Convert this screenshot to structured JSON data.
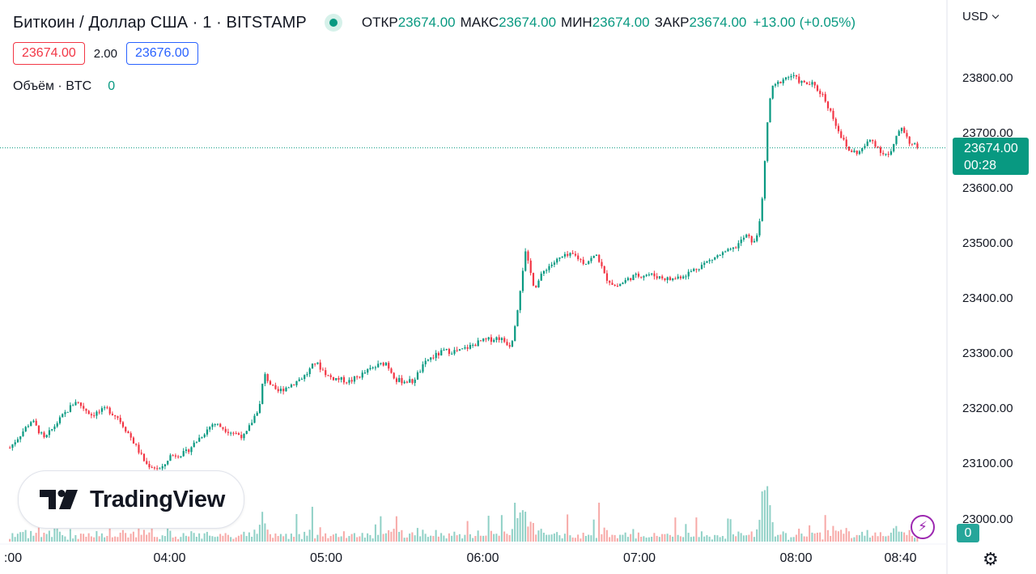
{
  "header": {
    "symbol": "Биткоин / Доллар США · 1 · BITSTAMP",
    "ohlc": [
      {
        "label": "ОТКР",
        "value": "23674.00"
      },
      {
        "label": "МАКС",
        "value": "23674.00"
      },
      {
        "label": "МИН",
        "value": "23674.00"
      },
      {
        "label": "ЗАКР",
        "value": "23674.00"
      }
    ],
    "change": "+13.00 (+0.05%)"
  },
  "quote": {
    "sell": "23674.00",
    "spread": "2.00",
    "buy": "23676.00"
  },
  "volume_legend": {
    "label": "Объём · BTC",
    "value": "0"
  },
  "currency": "USD",
  "price_tag": {
    "price": "23674.00",
    "countdown": "00:28"
  },
  "volume_tag": "0",
  "logo_text": "TradingView",
  "bolt_glyph": "⚡",
  "gear_glyph": "⚙",
  "colors": {
    "up": "#089981",
    "down": "#f23645",
    "vol_up": "#8fd0c6",
    "vol_down": "#f7a9a7"
  },
  "chart_data": {
    "type": "candlestick",
    "title": "Биткоин / Доллар США · 1 · BITSTAMP",
    "ylim": [
      22970,
      23850
    ],
    "y_ticks": [
      "23800.00",
      "23700.00",
      "23600.00",
      "23500.00",
      "23400.00",
      "23300.00",
      "23200.00",
      "23100.00",
      "23000.00"
    ],
    "x_ticks": [
      {
        "label": ":00",
        "t": 3.0
      },
      {
        "label": "04:00",
        "t": 4.0
      },
      {
        "label": "05:00",
        "t": 5.0
      },
      {
        "label": "06:00",
        "t": 6.0
      },
      {
        "label": "07:00",
        "t": 7.0
      },
      {
        "label": "08:00",
        "t": 8.0
      },
      {
        "label": "08:40",
        "t": 8.6667
      }
    ],
    "last_price": 23674.0,
    "series": [
      {
        "name": "BTC/USD",
        "points": [
          {
            "t": 2.98,
            "c": 23130
          },
          {
            "t": 3.12,
            "c": 23180
          },
          {
            "t": 3.2,
            "c": 23145
          },
          {
            "t": 3.28,
            "c": 23175
          },
          {
            "t": 3.4,
            "c": 23215
          },
          {
            "t": 3.5,
            "c": 23190
          },
          {
            "t": 3.6,
            "c": 23200
          },
          {
            "t": 3.67,
            "c": 23185
          },
          {
            "t": 3.75,
            "c": 23150
          },
          {
            "t": 3.85,
            "c": 23100
          },
          {
            "t": 3.95,
            "c": 23090
          },
          {
            "t": 4.0,
            "c": 23115
          },
          {
            "t": 4.1,
            "c": 23120
          },
          {
            "t": 4.18,
            "c": 23145
          },
          {
            "t": 4.28,
            "c": 23175
          },
          {
            "t": 4.38,
            "c": 23160
          },
          {
            "t": 4.48,
            "c": 23150
          },
          {
            "t": 4.58,
            "c": 23210
          },
          {
            "t": 4.6,
            "c": 23265
          },
          {
            "t": 4.68,
            "c": 23230
          },
          {
            "t": 4.78,
            "c": 23245
          },
          {
            "t": 4.87,
            "c": 23262
          },
          {
            "t": 4.93,
            "c": 23285
          },
          {
            "t": 5.02,
            "c": 23258
          },
          {
            "t": 5.15,
            "c": 23250
          },
          {
            "t": 5.3,
            "c": 23275
          },
          {
            "t": 5.38,
            "c": 23285
          },
          {
            "t": 5.45,
            "c": 23252
          },
          {
            "t": 5.55,
            "c": 23250
          },
          {
            "t": 5.65,
            "c": 23290
          },
          {
            "t": 5.75,
            "c": 23305
          },
          {
            "t": 5.85,
            "c": 23305
          },
          {
            "t": 5.98,
            "c": 23322
          },
          {
            "t": 6.1,
            "c": 23330
          },
          {
            "t": 6.18,
            "c": 23315
          },
          {
            "t": 6.22,
            "c": 23380
          },
          {
            "t": 6.27,
            "c": 23485
          },
          {
            "t": 6.33,
            "c": 23420
          },
          {
            "t": 6.4,
            "c": 23455
          },
          {
            "t": 6.5,
            "c": 23475
          },
          {
            "t": 6.58,
            "c": 23480
          },
          {
            "t": 6.65,
            "c": 23465
          },
          {
            "t": 6.73,
            "c": 23480
          },
          {
            "t": 6.78,
            "c": 23440
          },
          {
            "t": 6.85,
            "c": 23422
          },
          {
            "t": 6.95,
            "c": 23440
          },
          {
            "t": 7.05,
            "c": 23445
          },
          {
            "t": 7.2,
            "c": 23435
          },
          {
            "t": 7.3,
            "c": 23445
          },
          {
            "t": 7.4,
            "c": 23462
          },
          {
            "t": 7.5,
            "c": 23478
          },
          {
            "t": 7.6,
            "c": 23490
          },
          {
            "t": 7.68,
            "c": 23515
          },
          {
            "t": 7.74,
            "c": 23500
          },
          {
            "t": 7.77,
            "c": 23550
          },
          {
            "t": 7.79,
            "c": 23590
          },
          {
            "t": 7.81,
            "c": 23700
          },
          {
            "t": 7.84,
            "c": 23780
          },
          {
            "t": 7.88,
            "c": 23790
          },
          {
            "t": 7.92,
            "c": 23800
          },
          {
            "t": 7.97,
            "c": 23805
          },
          {
            "t": 8.05,
            "c": 23790
          },
          {
            "t": 8.1,
            "c": 23790
          },
          {
            "t": 8.17,
            "c": 23770
          },
          {
            "t": 8.22,
            "c": 23740
          },
          {
            "t": 8.28,
            "c": 23700
          },
          {
            "t": 8.33,
            "c": 23670
          },
          {
            "t": 8.4,
            "c": 23665
          },
          {
            "t": 8.48,
            "c": 23690
          },
          {
            "t": 8.55,
            "c": 23665
          },
          {
            "t": 8.6,
            "c": 23660
          },
          {
            "t": 8.67,
            "c": 23715
          },
          {
            "t": 8.73,
            "c": 23682
          },
          {
            "t": 8.78,
            "c": 23674
          }
        ]
      }
    ]
  }
}
